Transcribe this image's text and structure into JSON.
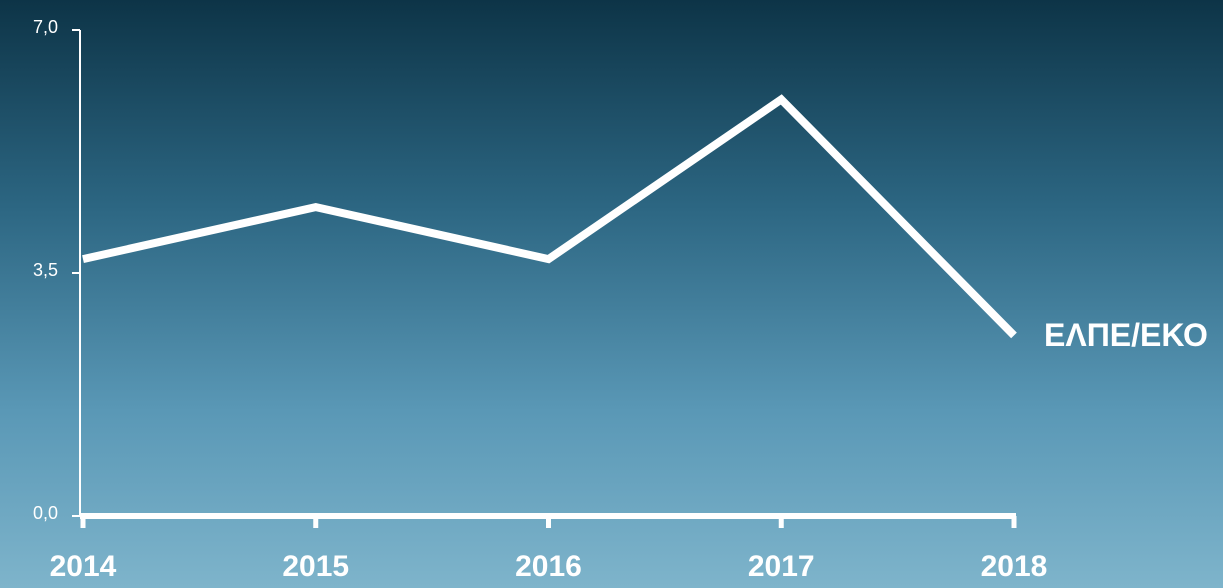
{
  "chart_data": {
    "type": "line",
    "categories": [
      "2014",
      "2015",
      "2016",
      "2017",
      "2018"
    ],
    "series": [
      {
        "name": "ΕΛΠΕ/ΕΚΟ",
        "color": "#ffffff",
        "values": [
          3.7,
          4.45,
          3.7,
          6.0,
          2.6
        ]
      }
    ],
    "ylim": [
      0,
      7
    ],
    "yticks": [
      {
        "value": 0,
        "label": "0,0"
      },
      {
        "value": 3.5,
        "label": "3,5"
      },
      {
        "value": 7,
        "label": "7,0"
      }
    ]
  }
}
